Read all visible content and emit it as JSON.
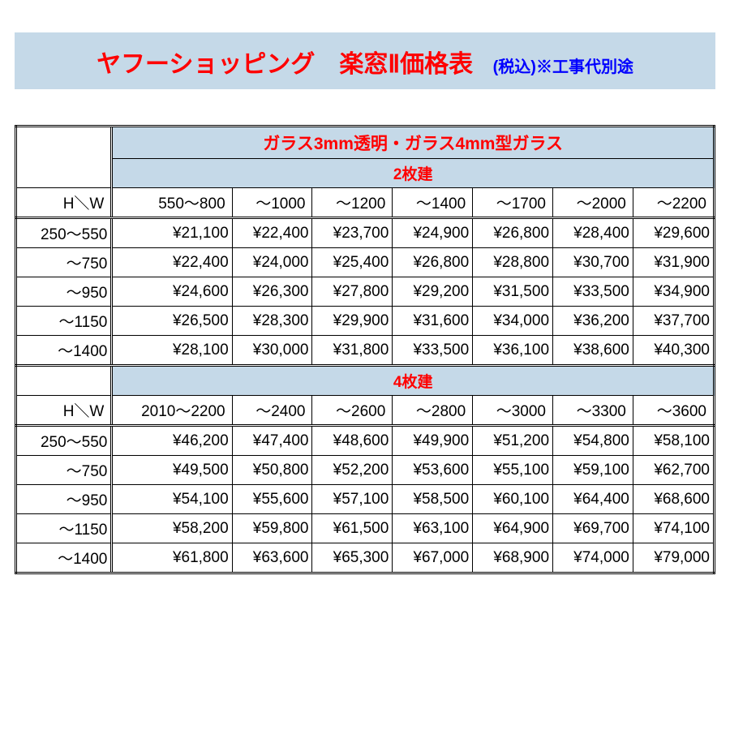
{
  "title": {
    "main": "ヤフーショッピング　楽窓Ⅱ価格表",
    "sub": "(税込)※工事代別途"
  },
  "colors": {
    "header_bg": "#c5d9e8",
    "accent_red": "#ff0000",
    "accent_blue": "#0000ff",
    "border": "#000000",
    "background": "#ffffff"
  },
  "table": {
    "type": "table",
    "glass_header": "ガラス3mm透明・ガラス4mm型ガラス",
    "hw_label": "H＼W",
    "sections": [
      {
        "panel_label": "2枚建",
        "col_headers": [
          "550～800",
          "～1000",
          "～1200",
          "～1400",
          "～1700",
          "～2000",
          "～2200"
        ],
        "row_headers": [
          "250～550",
          "～750",
          "～950",
          "～1150",
          "～1400"
        ],
        "rows": [
          [
            "¥21,100",
            "¥22,400",
            "¥23,700",
            "¥24,900",
            "¥26,800",
            "¥28,400",
            "¥29,600"
          ],
          [
            "¥22,400",
            "¥24,000",
            "¥25,400",
            "¥26,800",
            "¥28,800",
            "¥30,700",
            "¥31,900"
          ],
          [
            "¥24,600",
            "¥26,300",
            "¥27,800",
            "¥29,200",
            "¥31,500",
            "¥33,500",
            "¥34,900"
          ],
          [
            "¥26,500",
            "¥28,300",
            "¥29,900",
            "¥31,600",
            "¥34,000",
            "¥36,200",
            "¥37,700"
          ],
          [
            "¥28,100",
            "¥30,000",
            "¥31,800",
            "¥33,500",
            "¥36,100",
            "¥38,600",
            "¥40,300"
          ]
        ]
      },
      {
        "panel_label": "4枚建",
        "col_headers": [
          "2010～2200",
          "～2400",
          "～2600",
          "～2800",
          "～3000",
          "～3300",
          "～3600"
        ],
        "row_headers": [
          "250～550",
          "～750",
          "～950",
          "～1150",
          "～1400"
        ],
        "rows": [
          [
            "¥46,200",
            "¥47,400",
            "¥48,600",
            "¥49,900",
            "¥51,200",
            "¥54,800",
            "¥58,100"
          ],
          [
            "¥49,500",
            "¥50,800",
            "¥52,200",
            "¥53,600",
            "¥55,100",
            "¥59,100",
            "¥62,700"
          ],
          [
            "¥54,100",
            "¥55,600",
            "¥57,100",
            "¥58,500",
            "¥60,100",
            "¥64,400",
            "¥68,600"
          ],
          [
            "¥58,200",
            "¥59,800",
            "¥61,500",
            "¥63,100",
            "¥64,900",
            "¥69,700",
            "¥74,100"
          ],
          [
            "¥61,800",
            "¥63,600",
            "¥65,300",
            "¥67,000",
            "¥68,900",
            "¥74,000",
            "¥79,000"
          ]
        ]
      }
    ]
  }
}
